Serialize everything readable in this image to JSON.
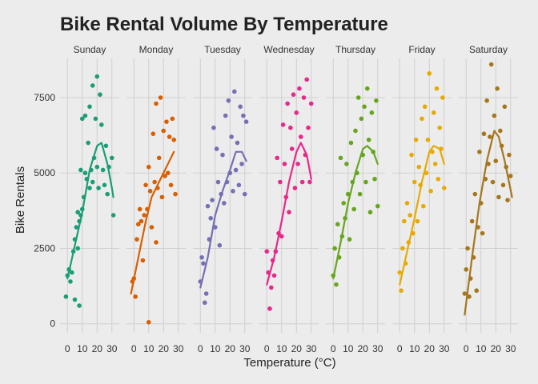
{
  "chart_data": {
    "type": "scatter",
    "title": "Bike Rental Volume By Temperature",
    "xlabel": "Temperature (°C)",
    "ylabel": "Bike Rentals",
    "xlim": [
      -5,
      35
    ],
    "ylim": [
      -300,
      8800
    ],
    "x_ticks": [
      0,
      10,
      20,
      30
    ],
    "y_ticks": [
      0,
      2500,
      5000,
      7500
    ],
    "y_tick_labels": [
      "0",
      "2500",
      "5000",
      "7500"
    ],
    "x_tick_labels": [
      "0",
      "10",
      "20",
      "30"
    ],
    "grid": true,
    "legend": "none",
    "panels": [
      {
        "name": "Sunday",
        "color": "#1b9e77",
        "fit": [
          [
            0,
            1500
          ],
          [
            5,
            2600
          ],
          [
            10,
            3700
          ],
          [
            15,
            5100
          ],
          [
            20,
            5900
          ],
          [
            23,
            6000
          ],
          [
            27,
            5300
          ],
          [
            30,
            4500
          ],
          [
            31,
            4200
          ]
        ],
        "points": [
          [
            -1,
            900
          ],
          [
            0,
            1600
          ],
          [
            1,
            1800
          ],
          [
            2,
            1400
          ],
          [
            3,
            1700
          ],
          [
            4,
            2400
          ],
          [
            5,
            800
          ],
          [
            5,
            2800
          ],
          [
            6,
            3200
          ],
          [
            7,
            2500
          ],
          [
            7,
            3700
          ],
          [
            8,
            3400
          ],
          [
            8,
            600
          ],
          [
            9,
            3600
          ],
          [
            9,
            5100
          ],
          [
            10,
            3800
          ],
          [
            10,
            6800
          ],
          [
            11,
            4200
          ],
          [
            12,
            5000
          ],
          [
            12,
            6900
          ],
          [
            13,
            4800
          ],
          [
            14,
            6000
          ],
          [
            15,
            4500
          ],
          [
            15,
            7200
          ],
          [
            16,
            5100
          ],
          [
            17,
            4700
          ],
          [
            17,
            7900
          ],
          [
            18,
            5500
          ],
          [
            19,
            6800
          ],
          [
            20,
            8200
          ],
          [
            20,
            5200
          ],
          [
            21,
            4500
          ],
          [
            22,
            7600
          ],
          [
            23,
            6600
          ],
          [
            24,
            5100
          ],
          [
            25,
            4600
          ],
          [
            26,
            5900
          ],
          [
            27,
            4300
          ],
          [
            28,
            5200
          ],
          [
            30,
            5500
          ],
          [
            31,
            3600
          ]
        ]
      },
      {
        "name": "Monday",
        "color": "#d95f02",
        "fit": [
          [
            -2,
            1000
          ],
          [
            3,
            2200
          ],
          [
            8,
            3400
          ],
          [
            12,
            4200
          ],
          [
            17,
            4700
          ],
          [
            22,
            5200
          ],
          [
            27,
            5700
          ]
        ],
        "points": [
          [
            -1,
            1400
          ],
          [
            0,
            1500
          ],
          [
            1,
            900
          ],
          [
            2,
            2800
          ],
          [
            3,
            3300
          ],
          [
            4,
            3800
          ],
          [
            5,
            3400
          ],
          [
            6,
            2100
          ],
          [
            7,
            3600
          ],
          [
            8,
            4600
          ],
          [
            9,
            3800
          ],
          [
            10,
            50
          ],
          [
            10,
            5200
          ],
          [
            11,
            4400
          ],
          [
            12,
            3200
          ],
          [
            13,
            6300
          ],
          [
            14,
            4700
          ],
          [
            15,
            2700
          ],
          [
            15,
            7300
          ],
          [
            16,
            4500
          ],
          [
            17,
            5500
          ],
          [
            18,
            7500
          ],
          [
            19,
            4200
          ],
          [
            20,
            6400
          ],
          [
            21,
            4900
          ],
          [
            22,
            6700
          ],
          [
            23,
            5000
          ],
          [
            24,
            6200
          ],
          [
            25,
            4600
          ],
          [
            26,
            6800
          ],
          [
            27,
            6100
          ],
          [
            28,
            4300
          ]
        ]
      },
      {
        "name": "Tuesday",
        "color": "#7570b3",
        "fit": [
          [
            0,
            1200
          ],
          [
            5,
            2200
          ],
          [
            10,
            3600
          ],
          [
            15,
            4400
          ],
          [
            20,
            5100
          ],
          [
            24,
            5700
          ],
          [
            28,
            5700
          ],
          [
            31,
            5400
          ]
        ],
        "points": [
          [
            0,
            1400
          ],
          [
            1,
            2200
          ],
          [
            2,
            2000
          ],
          [
            3,
            700
          ],
          [
            4,
            1000
          ],
          [
            5,
            3900
          ],
          [
            6,
            2800
          ],
          [
            7,
            3500
          ],
          [
            8,
            4100
          ],
          [
            9,
            6500
          ],
          [
            10,
            3200
          ],
          [
            11,
            5800
          ],
          [
            12,
            4700
          ],
          [
            13,
            2600
          ],
          [
            14,
            4300
          ],
          [
            15,
            5600
          ],
          [
            16,
            4000
          ],
          [
            17,
            6900
          ],
          [
            18,
            4700
          ],
          [
            19,
            7400
          ],
          [
            20,
            5000
          ],
          [
            21,
            6200
          ],
          [
            22,
            4400
          ],
          [
            23,
            7700
          ],
          [
            24,
            5100
          ],
          [
            25,
            6000
          ],
          [
            26,
            4600
          ],
          [
            27,
            7200
          ],
          [
            28,
            5300
          ],
          [
            29,
            6900
          ],
          [
            30,
            4300
          ],
          [
            31,
            6700
          ]
        ]
      },
      {
        "name": "Wednesday",
        "color": "#e7298a",
        "fit": [
          [
            0,
            1300
          ],
          [
            5,
            2200
          ],
          [
            10,
            3400
          ],
          [
            15,
            4700
          ],
          [
            20,
            5700
          ],
          [
            23,
            6000
          ],
          [
            27,
            5600
          ],
          [
            30,
            4800
          ]
        ],
        "points": [
          [
            0,
            2400
          ],
          [
            1,
            1700
          ],
          [
            2,
            500
          ],
          [
            3,
            1200
          ],
          [
            4,
            2100
          ],
          [
            5,
            1600
          ],
          [
            6,
            2400
          ],
          [
            7,
            5500
          ],
          [
            8,
            3000
          ],
          [
            9,
            4700
          ],
          [
            10,
            2900
          ],
          [
            11,
            6600
          ],
          [
            12,
            5300
          ],
          [
            13,
            4200
          ],
          [
            14,
            7300
          ],
          [
            15,
            3700
          ],
          [
            16,
            6500
          ],
          [
            17,
            5800
          ],
          [
            18,
            7600
          ],
          [
            19,
            4500
          ],
          [
            20,
            7000
          ],
          [
            21,
            5300
          ],
          [
            22,
            7800
          ],
          [
            23,
            6200
          ],
          [
            24,
            4700
          ],
          [
            25,
            7500
          ],
          [
            26,
            5600
          ],
          [
            27,
            8100
          ],
          [
            28,
            6500
          ],
          [
            29,
            4700
          ],
          [
            30,
            7300
          ]
        ]
      },
      {
        "name": "Thursday",
        "color": "#66a61e",
        "fit": [
          [
            0,
            1500
          ],
          [
            5,
            2700
          ],
          [
            10,
            4000
          ],
          [
            15,
            5000
          ],
          [
            20,
            5800
          ],
          [
            23,
            5900
          ],
          [
            27,
            5700
          ],
          [
            30,
            5300
          ]
        ],
        "points": [
          [
            0,
            1600
          ],
          [
            1,
            2500
          ],
          [
            2,
            1300
          ],
          [
            3,
            3300
          ],
          [
            4,
            2200
          ],
          [
            5,
            5500
          ],
          [
            6,
            2900
          ],
          [
            7,
            4000
          ],
          [
            8,
            3500
          ],
          [
            9,
            5300
          ],
          [
            10,
            4300
          ],
          [
            11,
            2800
          ],
          [
            12,
            6000
          ],
          [
            13,
            4700
          ],
          [
            14,
            3800
          ],
          [
            15,
            6400
          ],
          [
            16,
            5000
          ],
          [
            17,
            7500
          ],
          [
            18,
            4300
          ],
          [
            19,
            6800
          ],
          [
            20,
            5600
          ],
          [
            21,
            7200
          ],
          [
            22,
            4700
          ],
          [
            23,
            7800
          ],
          [
            24,
            6100
          ],
          [
            25,
            3700
          ],
          [
            26,
            7000
          ],
          [
            27,
            5700
          ],
          [
            28,
            4800
          ],
          [
            29,
            7400
          ],
          [
            30,
            3900
          ]
        ]
      },
      {
        "name": "Friday",
        "color": "#e6ab02",
        "fit": [
          [
            0,
            1300
          ],
          [
            5,
            2400
          ],
          [
            10,
            3500
          ],
          [
            15,
            4700
          ],
          [
            20,
            5700
          ],
          [
            23,
            5900
          ],
          [
            27,
            5800
          ],
          [
            30,
            5300
          ]
        ],
        "points": [
          [
            0,
            1700
          ],
          [
            1,
            1100
          ],
          [
            2,
            2500
          ],
          [
            3,
            3400
          ],
          [
            4,
            2000
          ],
          [
            5,
            4000
          ],
          [
            6,
            2700
          ],
          [
            7,
            3600
          ],
          [
            8,
            5600
          ],
          [
            9,
            3000
          ],
          [
            10,
            4700
          ],
          [
            11,
            6100
          ],
          [
            12,
            3400
          ],
          [
            13,
            5200
          ],
          [
            14,
            4600
          ],
          [
            15,
            6800
          ],
          [
            16,
            3900
          ],
          [
            17,
            7200
          ],
          [
            18,
            5000
          ],
          [
            19,
            6100
          ],
          [
            20,
            8300
          ],
          [
            21,
            4400
          ],
          [
            22,
            5700
          ],
          [
            23,
            7000
          ],
          [
            24,
            5300
          ],
          [
            25,
            7800
          ],
          [
            26,
            4800
          ],
          [
            27,
            6500
          ],
          [
            28,
            5800
          ],
          [
            29,
            7500
          ],
          [
            30,
            4500
          ]
        ]
      },
      {
        "name": "Saturday",
        "color": "#a6761d",
        "fit": [
          [
            -1,
            300
          ],
          [
            4,
            2200
          ],
          [
            9,
            4000
          ],
          [
            14,
            5400
          ],
          [
            19,
            6400
          ],
          [
            22,
            6200
          ],
          [
            26,
            5400
          ],
          [
            31,
            4200
          ]
        ],
        "points": [
          [
            -1,
            1000
          ],
          [
            0,
            1800
          ],
          [
            1,
            2500
          ],
          [
            2,
            900
          ],
          [
            3,
            1500
          ],
          [
            4,
            3400
          ],
          [
            5,
            2200
          ],
          [
            6,
            4300
          ],
          [
            7,
            1100
          ],
          [
            8,
            3200
          ],
          [
            9,
            5700
          ],
          [
            10,
            4000
          ],
          [
            11,
            3000
          ],
          [
            12,
            6300
          ],
          [
            13,
            4800
          ],
          [
            14,
            7400
          ],
          [
            15,
            5300
          ],
          [
            16,
            6200
          ],
          [
            17,
            8600
          ],
          [
            18,
            4700
          ],
          [
            19,
            6900
          ],
          [
            20,
            5400
          ],
          [
            21,
            7800
          ],
          [
            22,
            4200
          ],
          [
            23,
            6400
          ],
          [
            24,
            5900
          ],
          [
            25,
            4600
          ],
          [
            26,
            7200
          ],
          [
            27,
            5200
          ],
          [
            28,
            4100
          ],
          [
            29,
            5600
          ],
          [
            30,
            4900
          ]
        ]
      }
    ]
  }
}
